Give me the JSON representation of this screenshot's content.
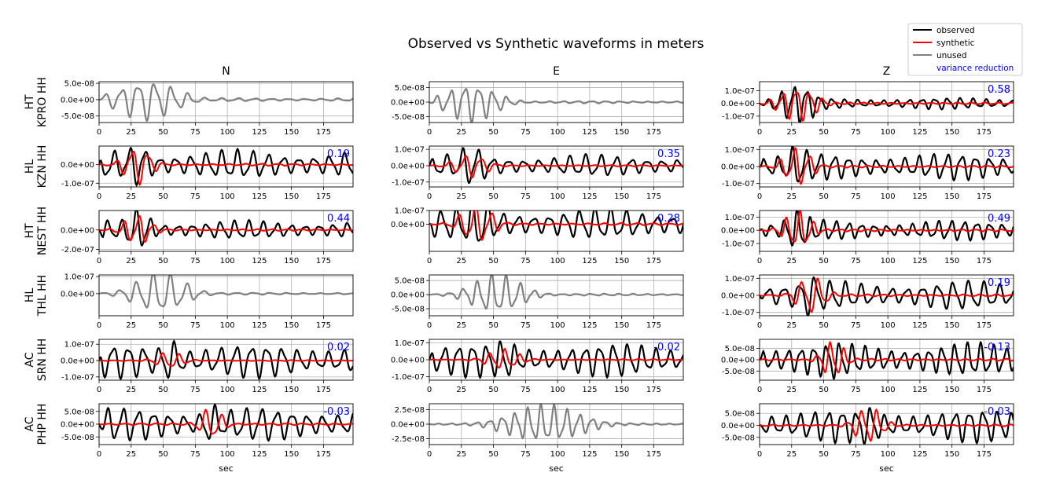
{
  "chart_data": {
    "type": "line",
    "title": "Observed vs Synthetic waveforms in meters",
    "columns": [
      "N",
      "E",
      "Z"
    ],
    "xlabel": "sec",
    "xlim": [
      0,
      198
    ],
    "xticks": [
      "0",
      "25",
      "50",
      "75",
      "100",
      "125",
      "150",
      "175"
    ],
    "grid": true,
    "legend": {
      "placement": "top-right",
      "entries": [
        {
          "label": "observed",
          "color": "#000000"
        },
        {
          "label": "synthetic",
          "color": "#ff0000"
        },
        {
          "label": "unused",
          "color": "#808080"
        },
        {
          "label": "variance reduction",
          "color": "#0000ff"
        }
      ]
    },
    "colors": {
      "observed": "#000000",
      "synthetic": "#ff0000",
      "unused": "#808080",
      "variance_reduction": "#0000ff"
    },
    "rows": [
      {
        "label": "HT\nKPRO HH",
        "panels": [
          {
            "yticks": [
              "5.0e-08",
              "0.0e+00",
              "-5.0e-08"
            ],
            "ytick_values": [
              5e-08,
              0,
              -5e-08
            ],
            "ylim": [
              -7e-08,
              5.5e-08
            ],
            "used": false,
            "vr": "",
            "amp_obs": 6e-08,
            "amp_syn": 0,
            "period": 13,
            "seed": 11,
            "burst_start": 5,
            "burst_end": 70,
            "tail": 0.08
          },
          {
            "yticks": [
              "5.0e-08",
              "0.0e+00",
              "-5.0e-08"
            ],
            "ytick_values": [
              5e-08,
              0,
              -5e-08
            ],
            "ylim": [
              -7e-08,
              7e-08
            ],
            "used": false,
            "vr": "",
            "amp_obs": 6.5e-08,
            "amp_syn": 0,
            "period": 11,
            "seed": 12,
            "burst_start": 5,
            "burst_end": 60,
            "tail": 0.06
          },
          {
            "yticks": [
              "1.0e-07",
              "0.0e+00",
              "-1.0e-07"
            ],
            "ytick_values": [
              1e-07,
              0,
              -1e-07
            ],
            "ylim": [
              -1.5e-07,
              1.7e-07
            ],
            "used": true,
            "vr": "0.58",
            "amp_obs": 1.5e-07,
            "amp_syn": 1.3e-07,
            "period": 10,
            "seed": 13,
            "burst_start": 10,
            "burst_end": 50,
            "tail": 0.3
          }
        ]
      },
      {
        "label": "HL\nKZN HH",
        "panels": [
          {
            "yticks": [
              "0.0e+00",
              "-1.0e-07"
            ],
            "ytick_values": [
              0,
              -1e-07
            ],
            "ylim": [
              -1.2e-07,
              1e-07
            ],
            "used": true,
            "vr": "0.19",
            "amp_obs": 1.1e-07,
            "amp_syn": 1e-07,
            "period": 12,
            "seed": 21,
            "burst_start": 15,
            "burst_end": 45,
            "tail": 0.7
          },
          {
            "yticks": [
              "1.0e-07",
              "0.0e+00",
              "-1.0e-07"
            ],
            "ytick_values": [
              1e-07,
              0,
              -1e-07
            ],
            "ylim": [
              -1.3e-07,
              1.2e-07
            ],
            "used": true,
            "vr": "0.35",
            "amp_obs": 1.2e-07,
            "amp_syn": 7e-08,
            "period": 12,
            "seed": 22,
            "burst_start": 15,
            "burst_end": 50,
            "tail": 0.55
          },
          {
            "yticks": [
              "1.0e-07",
              "0.0e+00",
              "-1.0e-07"
            ],
            "ytick_values": [
              1e-07,
              0,
              -1e-07
            ],
            "ylim": [
              -1.2e-07,
              1.2e-07
            ],
            "used": true,
            "vr": "0.23",
            "amp_obs": 1.2e-07,
            "amp_syn": 1.1e-07,
            "period": 11,
            "seed": 23,
            "burst_start": 15,
            "burst_end": 45,
            "tail": 0.65
          }
        ]
      },
      {
        "label": "HT\nNEST HH",
        "panels": [
          {
            "yticks": [
              "0.0e+00",
              "-2.0e-07"
            ],
            "ytick_values": [
              0,
              -2e-07
            ],
            "ylim": [
              -2.2e-07,
              2e-07
            ],
            "used": true,
            "vr": "0.44",
            "amp_obs": 2.1e-07,
            "amp_syn": 1.5e-07,
            "period": 11,
            "seed": 31,
            "burst_start": 15,
            "burst_end": 45,
            "tail": 0.45
          },
          {
            "yticks": [
              "1.0e-07",
              "0.0e+00"
            ],
            "ytick_values": [
              1e-07,
              0
            ],
            "ylim": [
              -2e-07,
              1e-07
            ],
            "used": true,
            "vr": "0.28",
            "amp_obs": 1.9e-07,
            "amp_syn": 1.4e-07,
            "period": 12,
            "seed": 32,
            "burst_start": 20,
            "burst_end": 55,
            "tail": 0.6
          },
          {
            "yticks": [
              "1.0e-07",
              "0.0e+00",
              "-1.0e-07"
            ],
            "ytick_values": [
              1e-07,
              0,
              -1e-07
            ],
            "ylim": [
              -1.6e-07,
              1.5e-07
            ],
            "used": true,
            "vr": "0.49",
            "amp_obs": 1.5e-07,
            "amp_syn": 1.4e-07,
            "period": 10,
            "seed": 33,
            "burst_start": 15,
            "burst_end": 45,
            "tail": 0.5
          }
        ]
      },
      {
        "label": "HL\nTHL HH",
        "panels": [
          {
            "yticks": [
              "1.0e-07",
              "0.0e+00"
            ],
            "ytick_values": [
              1e-07,
              0
            ],
            "ylim": [
              -1.3e-07,
              1.1e-07
            ],
            "used": false,
            "vr": "",
            "amp_obs": 1.2e-07,
            "amp_syn": 0,
            "period": 13,
            "seed": 41,
            "burst_start": 20,
            "burst_end": 75,
            "tail": 0.05
          },
          {
            "yticks": [
              "5.0e-08",
              "0.0e+00",
              "-5.0e-08"
            ],
            "ytick_values": [
              5e-08,
              0,
              -5e-08
            ],
            "ylim": [
              -7.5e-08,
              7e-08
            ],
            "used": false,
            "vr": "",
            "amp_obs": 7e-08,
            "amp_syn": 0,
            "period": 11,
            "seed": 42,
            "burst_start": 25,
            "burst_end": 80,
            "tail": 0.05
          },
          {
            "yticks": [
              "1.0e-07",
              "0.0e+00",
              "-1.0e-07"
            ],
            "ytick_values": [
              1e-07,
              0,
              -1e-07
            ],
            "ylim": [
              -1.2e-07,
              1.2e-07
            ],
            "used": true,
            "vr": "0.19",
            "amp_obs": 1.2e-07,
            "amp_syn": 1.1e-07,
            "period": 12,
            "seed": 43,
            "burst_start": 25,
            "burst_end": 55,
            "tail": 0.7
          }
        ]
      },
      {
        "label": "AC\nSRN HH",
        "panels": [
          {
            "yticks": [
              "1.0e-07",
              "0.0e+00",
              "-1.0e-07"
            ],
            "ytick_values": [
              1e-07,
              0,
              -1e-07
            ],
            "ylim": [
              -1.2e-07,
              1.3e-07
            ],
            "used": true,
            "vr": "0.02",
            "amp_obs": 1.2e-07,
            "amp_syn": 5e-08,
            "period": 12,
            "seed": 51,
            "burst_start": 40,
            "burst_end": 70,
            "tail": 0.85
          },
          {
            "yticks": [
              "1.0e-07",
              "0.0e+00",
              "-1.0e-07"
            ],
            "ytick_values": [
              1e-07,
              0,
              -1e-07
            ],
            "ylim": [
              -1.2e-07,
              1.2e-07
            ],
            "used": true,
            "vr": "-0.02",
            "amp_obs": 1.15e-07,
            "amp_syn": 6e-08,
            "period": 11,
            "seed": 52,
            "burst_start": 40,
            "burst_end": 75,
            "tail": 0.85
          },
          {
            "yticks": [
              "5.0e-08",
              "0.0e+00",
              "-5.0e-08"
            ],
            "ytick_values": [
              5e-08,
              0,
              -5e-08
            ],
            "ylim": [
              -9e-08,
              9e-08
            ],
            "used": true,
            "vr": "-0.13",
            "amp_obs": 8.5e-08,
            "amp_syn": 8e-08,
            "period": 10,
            "seed": 53,
            "burst_start": 45,
            "burst_end": 70,
            "tail": 0.85
          }
        ]
      },
      {
        "label": "AC\nPHP HH",
        "panels": [
          {
            "yticks": [
              "5.0e-08",
              "0.0e+00",
              "-5.0e-08"
            ],
            "ytick_values": [
              5e-08,
              0,
              -5e-08
            ],
            "ylim": [
              -8e-08,
              8e-08
            ],
            "used": true,
            "vr": "-0.03",
            "amp_obs": 7.5e-08,
            "amp_syn": 6e-08,
            "period": 12,
            "seed": 61,
            "burst_start": 75,
            "burst_end": 100,
            "tail": 0.85
          },
          {
            "yticks": [
              "2.5e-08",
              "0.0e+00",
              "-2.5e-08"
            ],
            "ytick_values": [
              2.5e-08,
              0,
              -2.5e-08
            ],
            "ylim": [
              -3.5e-08,
              3.5e-08
            ],
            "used": false,
            "vr": "",
            "amp_obs": 3.2e-08,
            "amp_syn": 0,
            "period": 10,
            "seed": 62,
            "burst_start": 50,
            "burst_end": 130,
            "tail": 0.05
          },
          {
            "yticks": [
              "5.0e-08",
              "0.0e+00",
              "-5.0e-08"
            ],
            "ytick_values": [
              5e-08,
              0,
              -5e-08
            ],
            "ylim": [
              -8e-08,
              9e-08
            ],
            "used": true,
            "vr": "-0.03",
            "amp_obs": 8e-08,
            "amp_syn": 7.5e-08,
            "period": 11,
            "seed": 63,
            "burst_start": 70,
            "burst_end": 100,
            "tail": 0.85
          }
        ]
      }
    ]
  }
}
